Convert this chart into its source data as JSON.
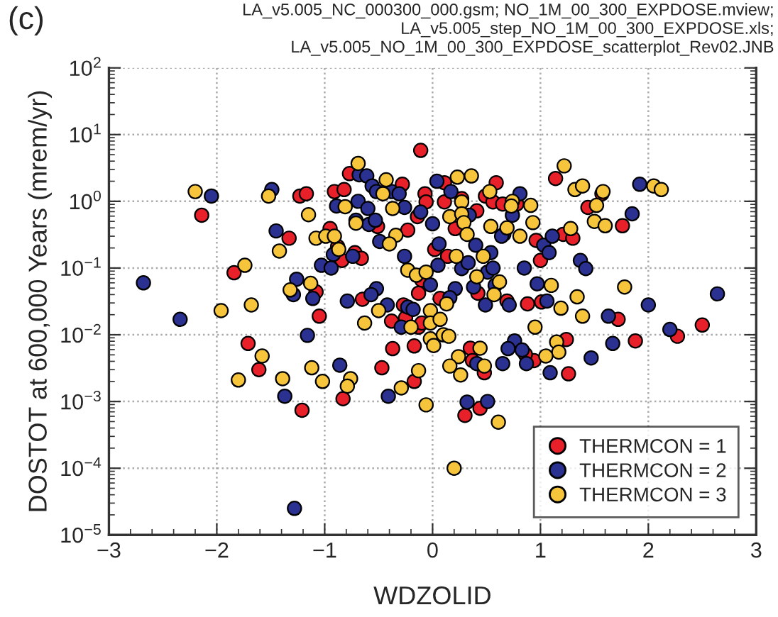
{
  "chart_data": {
    "type": "scatter",
    "title": "(c)",
    "annotations": [
      "LA_v5.005_NC_000300_000.gsm; NO_1M_00_300_EXPDOSE.mview;",
      "LA_v5.005_step_NO_1M_00_300_EXPDOSE.xls;",
      "LA_v5.005_NO_1M_00_300_EXPDOSE_scatterplot_Rev02.JNB"
    ],
    "xlabel": "WDZOLID",
    "ylabel": "DOSTOT at 600,000 Years (mrem/yr)",
    "xlim": [
      -3,
      3
    ],
    "xticks": [
      {
        "value": -3,
        "label": "−3"
      },
      {
        "value": -2,
        "label": "−2"
      },
      {
        "value": -1,
        "label": "−1"
      },
      0,
      1,
      2,
      3
    ],
    "ylim": [
      1e-05,
      100
    ],
    "log": "y",
    "yticks": [
      {
        "value": 1e-05,
        "label": "10$^{−5}$"
      },
      {
        "value": 0.0001,
        "label": "10$^{−4}$"
      },
      {
        "value": 0.001,
        "label": "10$^{−3}$"
      },
      {
        "value": 0.01,
        "label": "10$^{−2}$"
      },
      {
        "value": 0.1,
        "label": "10$^{−1}$"
      },
      {
        "value": 1,
        "label": "10$^{0}$"
      },
      {
        "value": 10,
        "label": "10$^{1}$"
      },
      {
        "value": 100,
        "label": "10$^{2}$"
      }
    ],
    "grid": true,
    "legend": "lower right",
    "marker": "circle",
    "series": [
      {
        "name": "THERMCON = 1",
        "color": "#e8202a",
        "x": [
          -2.14,
          -1.23,
          -1.17,
          -1.33,
          -1.84,
          -1.08,
          -1.05,
          -1.71,
          -1.61,
          -0.77,
          -0.91,
          -0.82,
          -0.51,
          -0.28,
          -0.14,
          -0.11,
          -0.23,
          -0.95,
          -0.88,
          -0.84,
          -0.72,
          -0.66,
          -0.1,
          -0.13,
          -0.65,
          -0.27,
          -0.38,
          -0.25,
          -0.13,
          -0.1,
          -0.37,
          -0.17,
          -0.47,
          -1.21,
          -0.83,
          -0.17,
          -0.07,
          -0.06,
          0.11,
          0.11,
          0.59,
          0.49,
          0.56,
          0.65,
          0.78,
          0.27,
          0.41,
          0.21,
          0.02,
          0.14,
          0.42,
          0.07,
          0.69,
          0.88,
          1.01,
          0.96,
          1.0,
          1.21,
          1.3,
          1.72,
          2.27,
          2.5,
          1.14,
          1.57,
          1.44,
          1.76,
          1.24,
          1.88,
          0.94,
          0.86,
          0.35,
          0.37,
          0.48,
          1.26,
          0.3,
          0.44
        ],
        "values": [
          0.62,
          1.2,
          1.3,
          0.28,
          0.085,
          0.044,
          0.019,
          0.0074,
          0.003,
          2.6,
          1.4,
          1.5,
          0.42,
          1.8,
          0.59,
          5.8,
          0.37,
          0.39,
          0.21,
          0.13,
          0.17,
          0.14,
          0.066,
          0.042,
          0.034,
          0.028,
          0.016,
          0.018,
          0.013,
          0.015,
          0.0062,
          0.0068,
          0.0032,
          0.00074,
          0.0011,
          0.002,
          1.3,
          0.98,
          0.98,
          1.9,
          1.9,
          1.2,
          0.98,
          0.91,
          0.91,
          1.1,
          0.72,
          0.39,
          0.19,
          0.15,
          0.042,
          0.035,
          0.032,
          0.029,
          0.031,
          0.26,
          0.13,
          0.32,
          0.28,
          0.017,
          0.0095,
          0.014,
          2.2,
          1.3,
          0.81,
          0.43,
          0.0085,
          0.0081,
          0.0041,
          0.0051,
          0.0063,
          0.0041,
          0.0027,
          0.0026,
          0.00062,
          0.00079
        ]
      },
      {
        "name": "THERMCON = 2",
        "color": "#2b3190",
        "x": [
          -2.05,
          -1.49,
          -1.45,
          -2.68,
          -2.34,
          -1.26,
          -1.29,
          -1.11,
          -1.16,
          -0.86,
          -0.68,
          -0.61,
          -0.89,
          -0.69,
          -0.71,
          -0.6,
          -0.59,
          -0.53,
          -0.56,
          -0.52,
          -0.38,
          -0.31,
          -0.26,
          -0.11,
          -0.49,
          -0.92,
          -1.03,
          -0.94,
          -0.74,
          -0.26,
          -0.52,
          -0.57,
          -0.79,
          -0.42,
          -0.23,
          -0.18,
          -0.29,
          -1.37,
          -0.41,
          -1.28,
          0.0,
          0.04,
          0.17,
          0.81,
          0.74,
          0.66,
          0.64,
          0.34,
          0.06,
          0.4,
          0.54,
          0.05,
          0.27,
          0.33,
          0.51,
          0.56,
          0.58,
          0.38,
          0.21,
          -0.02,
          0.16,
          0.49,
          0.71,
          1.06,
          0.85,
          1.03,
          1.08,
          1.11,
          0.97,
          1.37,
          1.42,
          1.63,
          2.0,
          2.2,
          2.64,
          1.85,
          1.92,
          1.47,
          1.67,
          0.76,
          0.7,
          0.83,
          0.41,
          0.65,
          0.87,
          1.09,
          0.32,
          0.51
        ],
        "values": [
          1.2,
          1.5,
          0.36,
          0.06,
          0.017,
          0.068,
          0.04,
          0.035,
          0.0098,
          0.0035,
          2.5,
          2.4,
          0.85,
          1.0,
          0.52,
          0.78,
          0.45,
          0.52,
          1.7,
          1.4,
          1.4,
          1.3,
          0.81,
          0.69,
          0.25,
          0.16,
          0.11,
          0.1,
          0.15,
          0.15,
          0.049,
          0.04,
          0.032,
          0.028,
          0.026,
          0.024,
          0.013,
          0.0012,
          0.0012,
          2.5e-05,
          0.46,
          2.0,
          1.4,
          1.3,
          0.62,
          0.32,
          0.3,
          0.62,
          0.23,
          0.22,
          0.17,
          0.11,
          0.098,
          0.12,
          0.087,
          0.1,
          0.055,
          0.052,
          0.049,
          0.056,
          0.036,
          0.028,
          0.028,
          0.032,
          0.1,
          0.22,
          0.17,
          0.3,
          0.058,
          0.13,
          0.098,
          0.019,
          0.028,
          0.012,
          0.041,
          0.65,
          1.8,
          0.0045,
          0.0074,
          0.0081,
          0.0062,
          0.0059,
          0.0037,
          0.0037,
          0.0037,
          0.0027,
          0.00098,
          0.001
        ]
      },
      {
        "name": "THERMCON = 3",
        "color": "#f7c53c",
        "x": [
          -2.2,
          -1.52,
          -1.15,
          -1.42,
          -1.74,
          -1.96,
          -1.68,
          -1.13,
          -1.32,
          -1.58,
          -1.12,
          -0.69,
          -0.81,
          -0.71,
          -0.43,
          -0.46,
          -0.37,
          -0.34,
          -0.4,
          -1.08,
          -0.99,
          -0.91,
          -0.87,
          -0.23,
          -0.15,
          -0.5,
          -0.63,
          -0.2,
          -0.13,
          -1.8,
          -1.39,
          -1.02,
          -0.76,
          -0.79,
          -0.29,
          -0.06,
          0.23,
          0.36,
          0.53,
          0.74,
          0.73,
          0.91,
          0.93,
          0.54,
          0.69,
          0.81,
          0.27,
          0.16,
          0.27,
          0.29,
          0.32,
          0.47,
          0.22,
          0.41,
          0.62,
          0.57,
          -0.06,
          0.13,
          -0.02,
          1.28,
          1.1,
          1.19,
          0.95,
          1.34,
          1.39,
          1.78,
          1.22,
          1.32,
          1.39,
          1.58,
          1.52,
          1.5,
          1.6,
          2.05,
          2.12,
          1.15,
          1.17,
          1.05,
          0.44,
          0.24,
          0.48,
          0.16,
          -0.02,
          0.1,
          0.15,
          0.01,
          -0.02,
          0.07,
          0.26,
          0.61,
          0.2
        ],
        "values": [
          1.4,
          1.2,
          0.63,
          0.18,
          0.11,
          0.023,
          0.028,
          0.059,
          0.047,
          0.0048,
          0.0032,
          3.7,
          0.83,
          0.47,
          2.1,
          1.3,
          0.78,
          0.31,
          0.23,
          0.28,
          0.3,
          0.3,
          0.19,
          0.093,
          0.078,
          0.023,
          0.015,
          0.013,
          0.0029,
          0.0021,
          0.0022,
          0.002,
          0.0022,
          0.0017,
          0.0016,
          0.00089,
          2.3,
          2.4,
          1.4,
          1.0,
          0.85,
          0.87,
          0.48,
          0.42,
          0.4,
          0.3,
          0.98,
          0.59,
          0.65,
          0.48,
          0.32,
          0.15,
          0.15,
          0.074,
          0.062,
          0.04,
          0.087,
          0.029,
          0.023,
          0.39,
          0.055,
          0.025,
          0.013,
          0.037,
          0.019,
          0.052,
          3.4,
          1.5,
          1.7,
          1.4,
          0.87,
          0.5,
          0.43,
          1.7,
          1.5,
          0.0078,
          0.0055,
          0.0048,
          0.0063,
          0.0047,
          0.0034,
          0.0034,
          0.0087,
          0.01,
          0.0095,
          0.0069,
          0.015,
          0.017,
          0.0025,
          0.00049,
          0.0001
        ]
      }
    ]
  }
}
